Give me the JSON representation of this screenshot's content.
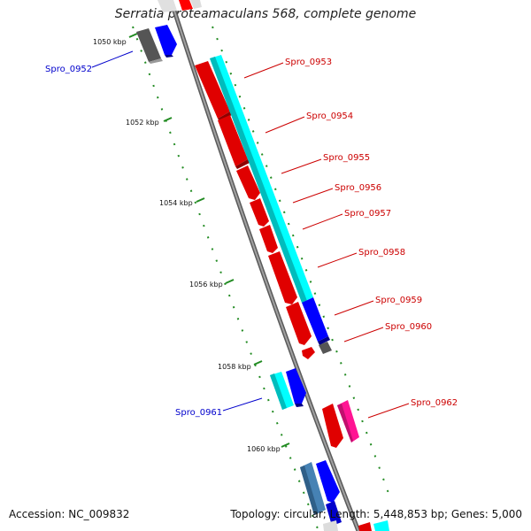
{
  "title": "Serratia proteamaculans 568, complete genome",
  "footer": {
    "accession": "Accession: NC_009832",
    "info": "Topology: circular; Length: 5,448,853 bp; Genes: 5,000"
  },
  "colors": {
    "backbone": "#888888",
    "forward_strand": "#ff0000",
    "feature_cyan": "#00ffff",
    "feature_blue": "#0000ff",
    "feature_gray": "#777777",
    "feature_magenta": "#ff1493",
    "feature_steel": "#4682b4",
    "label_red": "#cc0000",
    "label_blue": "#0000cc",
    "tick_green": "#228b22"
  },
  "ruler": [
    "1050 kbp",
    "1052 kbp",
    "1054 kbp",
    "1056 kbp",
    "1058 kbp",
    "1060 kbp"
  ],
  "genes": [
    {
      "label": "Spro_0952",
      "color": "blue"
    },
    {
      "label": "Spro_0953",
      "color": "red"
    },
    {
      "label": "Spro_0954",
      "color": "red"
    },
    {
      "label": "Spro_0955",
      "color": "red"
    },
    {
      "label": "Spro_0956",
      "color": "red"
    },
    {
      "label": "Spro_0957",
      "color": "red"
    },
    {
      "label": "Spro_0958",
      "color": "red"
    },
    {
      "label": "Spro_0959",
      "color": "red"
    },
    {
      "label": "Spro_0960",
      "color": "red"
    },
    {
      "label": "Spro_0961",
      "color": "blue"
    },
    {
      "label": "Spro_0962",
      "color": "red"
    }
  ]
}
